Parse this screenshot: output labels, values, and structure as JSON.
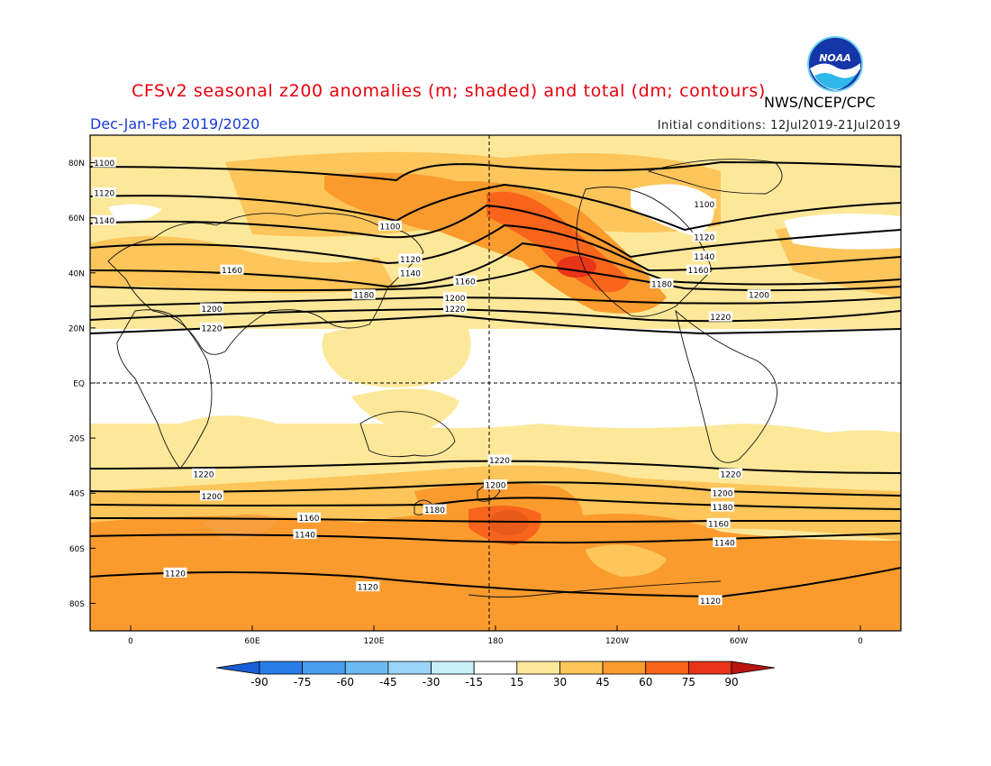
{
  "title": "CFSv2 seasonal z200 anomalies (m; shaded) and total (dm; contours)",
  "season": "Dec-Jan-Feb 2019/2020",
  "initial_conditions": "Initial conditions: 12Jul2019-21Jul2019",
  "agency": "NWS/NCEP/CPC",
  "logo_text": "NOAA",
  "axes": {
    "lat_ticks": [
      {
        "label": "80N",
        "lat": 80
      },
      {
        "label": "60N",
        "lat": 60
      },
      {
        "label": "40N",
        "lat": 40
      },
      {
        "label": "20N",
        "lat": 20
      },
      {
        "label": "EQ",
        "lat": 0
      },
      {
        "label": "20S",
        "lat": -20
      },
      {
        "label": "40S",
        "lat": -40
      },
      {
        "label": "60S",
        "lat": -60
      },
      {
        "label": "80S",
        "lat": -80
      }
    ],
    "lon_ticks": [
      {
        "label": "0",
        "lon": 0
      },
      {
        "label": "60E",
        "lon": 60
      },
      {
        "label": "120E",
        "lon": 120
      },
      {
        "label": "180",
        "lon": 180
      },
      {
        "label": "120W",
        "lon": 240
      },
      {
        "label": "60W",
        "lon": 300
      },
      {
        "label": "0",
        "lon": 360
      }
    ]
  },
  "colorbar": {
    "labels": [
      "-90",
      "-75",
      "-60",
      "-45",
      "-30",
      "-15",
      "15",
      "30",
      "45",
      "60",
      "75",
      "90"
    ],
    "colors": [
      "#1a5fd8",
      "#2a7de8",
      "#4a9ef0",
      "#6cbaf2",
      "#9ad4f8",
      "#c8f0f8",
      "#ffffff",
      "#fde89a",
      "#fdc55a",
      "#fb9b2e",
      "#f8641c",
      "#e83418",
      "#b81410"
    ]
  },
  "map": {
    "lon_range": [
      -20,
      380
    ],
    "lat_range": [
      -90,
      90
    ],
    "contour_labels": [
      {
        "label": "1100",
        "lon": -13,
        "lat": 80
      },
      {
        "label": "1120",
        "lon": -13,
        "lat": 69
      },
      {
        "label": "1140",
        "lon": -13,
        "lat": 59
      },
      {
        "label": "1160",
        "lon": 50,
        "lat": 41
      },
      {
        "label": "1180",
        "lon": 115,
        "lat": 32
      },
      {
        "label": "1200",
        "lon": 40,
        "lat": 27
      },
      {
        "label": "1220",
        "lon": 40,
        "lat": 20
      },
      {
        "label": "1100",
        "lon": 128,
        "lat": 57
      },
      {
        "label": "1120",
        "lon": 138,
        "lat": 45
      },
      {
        "label": "1140",
        "lon": 138,
        "lat": 40
      },
      {
        "label": "1160",
        "lon": 165,
        "lat": 37
      },
      {
        "label": "1200",
        "lon": 160,
        "lat": 31
      },
      {
        "label": "1220",
        "lon": 160,
        "lat": 27
      },
      {
        "label": "1180",
        "lon": 262,
        "lat": 36
      },
      {
        "label": "1100",
        "lon": 283,
        "lat": 65
      },
      {
        "label": "1120",
        "lon": 283,
        "lat": 53
      },
      {
        "label": "1140",
        "lon": 283,
        "lat": 46
      },
      {
        "label": "1160",
        "lon": 280,
        "lat": 41
      },
      {
        "label": "1200",
        "lon": 310,
        "lat": 32
      },
      {
        "label": "1220",
        "lon": 291,
        "lat": 24
      },
      {
        "label": "1220",
        "lon": 182,
        "lat": -28
      },
      {
        "label": "1220",
        "lon": 36,
        "lat": -33
      },
      {
        "label": "1220",
        "lon": 296,
        "lat": -33
      },
      {
        "label": "1200",
        "lon": 180,
        "lat": -37
      },
      {
        "label": "1200",
        "lon": 40,
        "lat": -41
      },
      {
        "label": "1200",
        "lon": 292,
        "lat": -40
      },
      {
        "label": "1180",
        "lon": 150,
        "lat": -46
      },
      {
        "label": "1180",
        "lon": 292,
        "lat": -45
      },
      {
        "label": "1160",
        "lon": 88,
        "lat": -49
      },
      {
        "label": "1160",
        "lon": 290,
        "lat": -51
      },
      {
        "label": "1140",
        "lon": 86,
        "lat": -55
      },
      {
        "label": "1140",
        "lon": 293,
        "lat": -58
      },
      {
        "label": "1120",
        "lon": 22,
        "lat": -69
      },
      {
        "label": "1120",
        "lon": 117,
        "lat": -74
      },
      {
        "label": "1120",
        "lon": 286,
        "lat": -79
      }
    ]
  }
}
